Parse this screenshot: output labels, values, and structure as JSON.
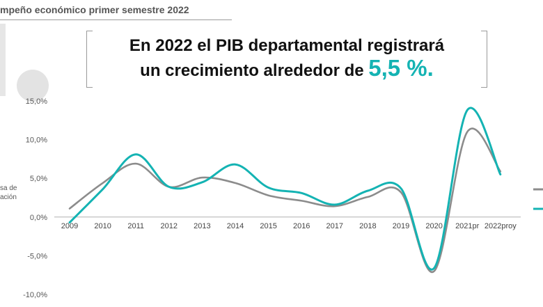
{
  "header": {
    "title": "mpeño económico primer semestre 2022"
  },
  "headline": {
    "line1": "En 2022 el PIB departamental registrará",
    "line2_prefix": "un crecimiento alrededor de ",
    "highlight": "5,5 %."
  },
  "chart_data": {
    "type": "line",
    "categories": [
      "2009",
      "2010",
      "2011",
      "2012",
      "2013",
      "2014",
      "2015",
      "2016",
      "2017",
      "2018",
      "2019",
      "2020",
      "2021pr",
      "2022proy"
    ],
    "ylim": [
      -10,
      15
    ],
    "yticks": [
      15,
      10,
      5,
      0,
      -5,
      -10
    ],
    "ytick_labels": [
      "15,0%",
      "10,0%",
      "5,0%",
      "0,0%",
      "-5,0%",
      "-10,0%"
    ],
    "ylabel_lines": [
      "sa de",
      "ación"
    ],
    "grid": false,
    "legend": "right",
    "series": [
      {
        "color": "#8c8c8c",
        "values": [
          1.1,
          4.4,
          6.9,
          3.9,
          5.1,
          4.4,
          2.8,
          2.1,
          1.4,
          2.6,
          3.2,
          -7.0,
          11.0,
          5.9
        ]
      },
      {
        "color": "#14b3b3",
        "values": [
          -0.7,
          3.6,
          8.1,
          3.9,
          4.5,
          6.8,
          3.8,
          3.1,
          1.6,
          3.4,
          3.7,
          -6.6,
          13.8,
          5.5
        ]
      }
    ]
  }
}
